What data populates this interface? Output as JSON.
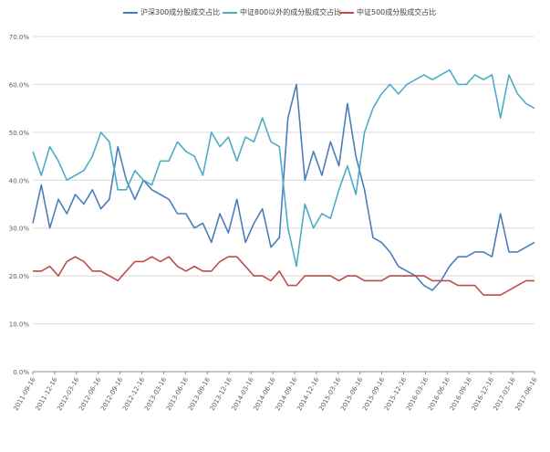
{
  "chart_data": {
    "type": "line",
    "legend_position": "top",
    "grid": true,
    "ylim": [
      0,
      70
    ],
    "y_ticks": [
      "0.0%",
      "10.0%",
      "20.0%",
      "30.0%",
      "40.0%",
      "50.0%",
      "60.0%",
      "70.0%"
    ],
    "x_tick_labels": [
      "2011-09-16",
      "2011-12-16",
      "2012-03-16",
      "2012-06-16",
      "2012-09-16",
      "2012-12-16",
      "2013-03-16",
      "2013-06-16",
      "2013-09-16",
      "2013-12-16",
      "2014-03-16",
      "2014-06-16",
      "2014-09-16",
      "2014-12-16",
      "2015-03-16",
      "2015-06-16",
      "2015-09-16",
      "2015-12-16",
      "2016-03-16",
      "2016-06-16",
      "2016-09-16",
      "2016-12-16",
      "2017-03-16",
      "2017-06-16"
    ],
    "series": [
      {
        "name": "沪深300成分股成交占比",
        "color": "#4a7ebb",
        "values": [
          31,
          39,
          30,
          36,
          33,
          37,
          35,
          38,
          34,
          36,
          47,
          40,
          36,
          40,
          38,
          37,
          36,
          33,
          33,
          30,
          31,
          27,
          33,
          29,
          36,
          27,
          31,
          34,
          26,
          28,
          53,
          60,
          40,
          46,
          41,
          48,
          43,
          56,
          45,
          38,
          28,
          27,
          25,
          22,
          21,
          20,
          18,
          17,
          19,
          22,
          24,
          24,
          25,
          25,
          24,
          33,
          25,
          25,
          26,
          27
        ]
      },
      {
        "name": "中证800以外的成分股成交占比",
        "color": "#4bacc6",
        "values": [
          46,
          41,
          47,
          44,
          40,
          41,
          42,
          45,
          50,
          48,
          38,
          38,
          42,
          40,
          39,
          44,
          44,
          48,
          46,
          45,
          41,
          50,
          47,
          49,
          44,
          49,
          48,
          53,
          48,
          47,
          30,
          22,
          35,
          30,
          33,
          32,
          38,
          43,
          37,
          50,
          55,
          58,
          60,
          58,
          60,
          61,
          62,
          61,
          62,
          63,
          60,
          60,
          62,
          61,
          62,
          53,
          62,
          58,
          56,
          55
        ]
      },
      {
        "name": "中证500成分股成交占比",
        "color": "#be4b48",
        "values": [
          21,
          21,
          22,
          20,
          23,
          24,
          23,
          21,
          21,
          20,
          19,
          21,
          23,
          23,
          24,
          23,
          24,
          22,
          21,
          22,
          21,
          21,
          23,
          24,
          24,
          22,
          20,
          20,
          19,
          21,
          18,
          18,
          20,
          20,
          20,
          20,
          19,
          20,
          20,
          19,
          19,
          19,
          20,
          20,
          20,
          20,
          20,
          19,
          19,
          19,
          18,
          18,
          18,
          16,
          16,
          16,
          17,
          18,
          19,
          19
        ]
      }
    ]
  }
}
